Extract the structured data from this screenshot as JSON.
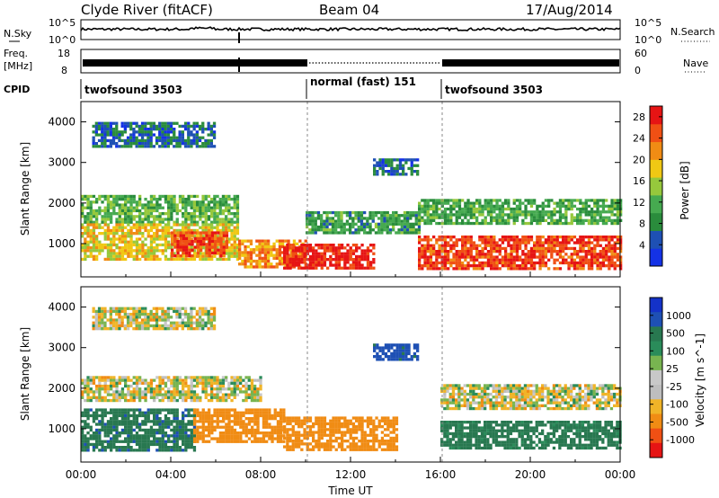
{
  "header": {
    "station": "Clyde River (fitACF)",
    "beam": "Beam 04",
    "date": "17/Aug/2014"
  },
  "noise_panel": {
    "left_label": "N.Sky",
    "left_ticks": [
      "10^5",
      "10^0"
    ],
    "right_ticks": [
      "10^5",
      "10^0"
    ],
    "right_label": "N.Search"
  },
  "freq_panel": {
    "left_label_top": "Freq.",
    "left_label_bottom": "[MHz]",
    "left_ticks": [
      "18",
      "8"
    ],
    "right_ticks": [
      "60",
      "0"
    ],
    "right_label": "Nave"
  },
  "cpid": {
    "label": "CPID",
    "segments": [
      {
        "name": "twofsound 3503",
        "start_hour": 0,
        "end_hour": 10
      },
      {
        "name": "normal (fast) 151",
        "start_hour": 10,
        "end_hour": 16
      },
      {
        "name": "twofsound 3503",
        "start_hour": 16,
        "end_hour": 24
      }
    ]
  },
  "x_axis": {
    "title": "Time UT",
    "tick_labels": [
      "00:00",
      "04:00",
      "08:00",
      "12:00",
      "16:00",
      "20:00",
      "00:00"
    ]
  },
  "colors": {
    "power_scale": [
      "#1432e6",
      "#1e50b4",
      "#2a8c3c",
      "#46aa50",
      "#96c83c",
      "#f0c814",
      "#f08c14",
      "#f05014",
      "#e61414"
    ],
    "velocity_scale": [
      "#e61414",
      "#f05014",
      "#f08c14",
      "#f0b428",
      "#bebebe",
      "#c8c8c8",
      "#78b450",
      "#2a8c5a",
      "#287850",
      "#1e50b4",
      "#1432c8"
    ]
  },
  "chart_data": [
    {
      "type": "heatmap",
      "title": "Power",
      "ylabel": "Slant Range [km]",
      "xlabel": "Time UT",
      "xlim": [
        0,
        24
      ],
      "ylim": [
        180,
        4500
      ],
      "y_ticks": [
        1000,
        2000,
        3000,
        4000
      ],
      "colorbar_label": "Power [dB]",
      "colorbar_ticks": [
        4,
        8,
        12,
        16,
        20,
        24,
        28
      ],
      "colorbar_range": [
        0,
        30
      ],
      "regions": [
        {
          "t0": 0,
          "t1": 7,
          "r0": 1500,
          "r1": 2200,
          "value": 12
        },
        {
          "t0": 0,
          "t1": 7,
          "r0": 600,
          "r1": 1500,
          "value": 18
        },
        {
          "t0": 4,
          "t1": 6.5,
          "r0": 700,
          "r1": 1300,
          "value": 26
        },
        {
          "t0": 7,
          "t1": 10,
          "r0": 400,
          "r1": 1100,
          "value": 22
        },
        {
          "t0": 9,
          "t1": 13,
          "r0": 400,
          "r1": 1000,
          "value": 28
        },
        {
          "t0": 10,
          "t1": 15,
          "r0": 1300,
          "r1": 1800,
          "value": 10
        },
        {
          "t0": 13,
          "t1": 15,
          "r0": 2700,
          "r1": 3100,
          "value": 6
        },
        {
          "t0": 15,
          "t1": 24,
          "r0": 400,
          "r1": 1200,
          "value": 26
        },
        {
          "t0": 15,
          "t1": 24,
          "r0": 1500,
          "r1": 2100,
          "value": 11
        },
        {
          "t0": 0.5,
          "t1": 6,
          "r0": 3400,
          "r1": 4000,
          "value": 6
        }
      ]
    },
    {
      "type": "heatmap",
      "title": "Velocity",
      "ylabel": "Slant Range [km]",
      "xlabel": "Time UT",
      "xlim": [
        0,
        24
      ],
      "ylim": [
        180,
        4500
      ],
      "y_ticks": [
        1000,
        2000,
        3000,
        4000
      ],
      "colorbar_label": "Velocity [m s^-1]",
      "colorbar_ticks": [
        "1000",
        "500",
        "100",
        "25",
        "-25",
        "-100",
        "-500",
        "-1000"
      ],
      "regions": [
        {
          "t0": 0,
          "t1": 8,
          "r0": 1700,
          "r1": 2300,
          "value": 0
        },
        {
          "t0": 0,
          "t1": 5,
          "r0": 500,
          "r1": 1500,
          "value": 400
        },
        {
          "t0": 5,
          "t1": 9,
          "r0": 700,
          "r1": 1500,
          "value": -300
        },
        {
          "t0": 9,
          "t1": 14,
          "r0": 500,
          "r1": 1300,
          "value": -300
        },
        {
          "t0": 13,
          "t1": 15,
          "r0": 2700,
          "r1": 3100,
          "value": 600
        },
        {
          "t0": 16,
          "t1": 24,
          "r0": 500,
          "r1": 1200,
          "value": 300
        },
        {
          "t0": 16,
          "t1": 24,
          "r0": 1500,
          "r1": 2100,
          "value": 0
        },
        {
          "t0": 0.5,
          "t1": 6,
          "r0": 3500,
          "r1": 4000,
          "value": 0
        }
      ]
    }
  ]
}
